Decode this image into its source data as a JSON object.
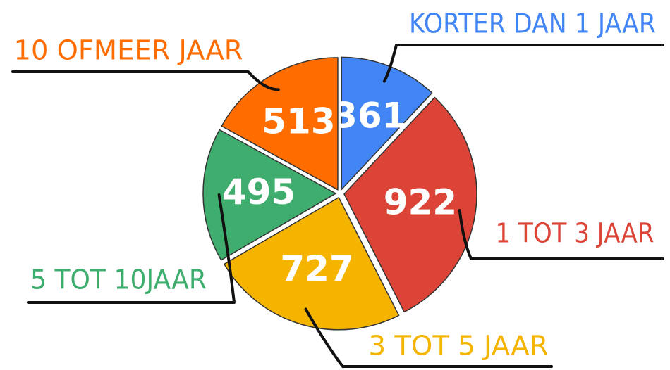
{
  "chart_data": {
    "type": "pie",
    "categories": [
      "KORTER DAN 1 JAAR",
      "1 TOT 3 JAAR",
      "3 TOT 5 JAAR",
      "5 TOT 10JAAR",
      "10 OFMEER JAAR"
    ],
    "values": [
      361,
      922,
      727,
      495,
      513
    ],
    "colors": [
      "#4285f4",
      "#db4437",
      "#f4b400",
      "#3fad6e",
      "#ff6d01"
    ]
  }
}
